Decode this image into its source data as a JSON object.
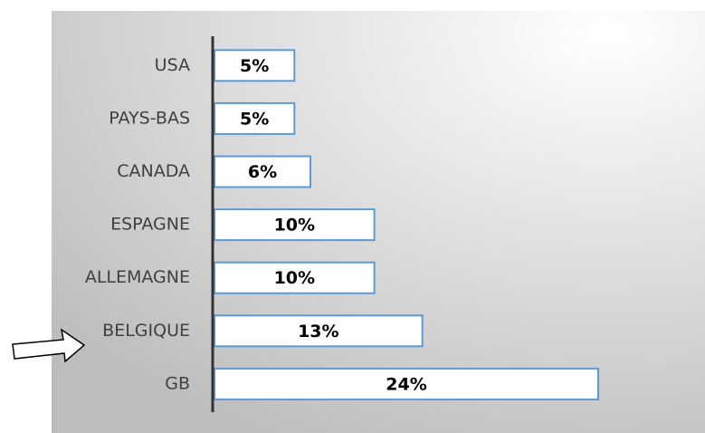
{
  "chart_data": {
    "type": "bar",
    "categories": [
      "USA",
      "PAYS-BAS",
      "CANADA",
      "ESPAGNE",
      "ALLEMAGNE",
      "BELGIQUE",
      "GB"
    ],
    "values": [
      5,
      5,
      6,
      10,
      10,
      13,
      24
    ],
    "value_labels": [
      "5%",
      "5%",
      "6%",
      "10%",
      "10%",
      "13%",
      "24%"
    ],
    "color": "#5b9bd5"
  }
}
